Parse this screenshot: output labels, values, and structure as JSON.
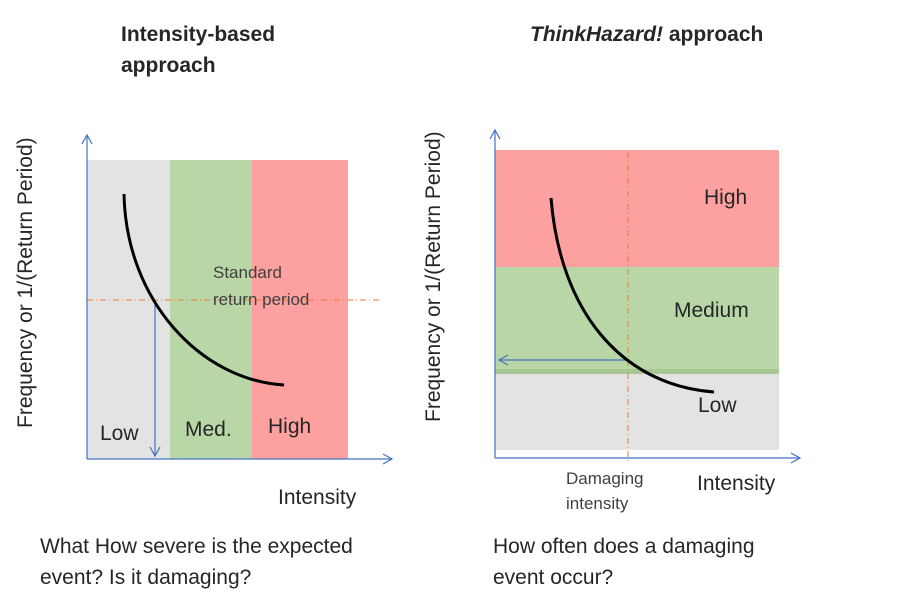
{
  "left": {
    "title_line1": "Intensity-based",
    "title_line2": "approach",
    "y_axis_label": "Frequency  or 1/(Return Period)",
    "x_axis_label": "Intensity",
    "zone_low": "Low",
    "zone_med": "Med.",
    "zone_high": "High",
    "ref_line1": "Standard",
    "ref_line2": "return period",
    "caption_line1": "What How severe is the expected",
    "caption_line2": "event? Is it damaging?"
  },
  "right": {
    "title_italic": "ThinkHazard!",
    "title_rest": " approach",
    "y_axis_label": "Frequency  or 1/(Return Period)",
    "x_axis_label": "Intensity",
    "zone_high": "High",
    "zone_medium": "Medium",
    "zone_low": "Low",
    "ref_line1": "Damaging",
    "ref_line2": "intensity",
    "caption_line1": "How often does a damaging",
    "caption_line2": "event occur?"
  },
  "colors": {
    "low": "#e3e3e3",
    "medium": "#b9d7a6",
    "high": "#fca0a0",
    "axis": "#4472c4",
    "reference_line": "#ed7d31",
    "curve": "#000000"
  }
}
